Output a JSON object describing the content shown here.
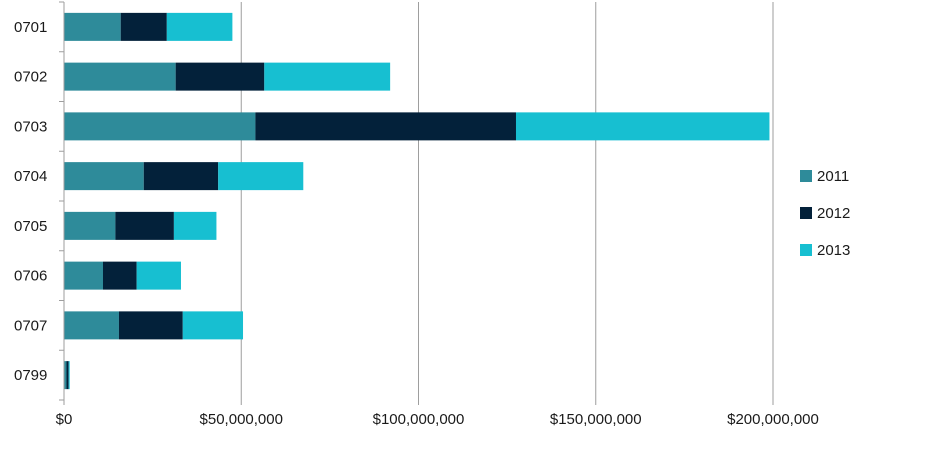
{
  "chart_data": {
    "type": "bar",
    "orientation": "horizontal",
    "stacked": true,
    "categories": [
      "0701",
      "0702",
      "0703",
      "0704",
      "0705",
      "0706",
      "0707",
      "0799"
    ],
    "series": [
      {
        "name": "2011",
        "color": "#2e8b9a",
        "values": [
          16000000,
          31500000,
          54000000,
          22500000,
          14500000,
          11000000,
          15500000,
          700000
        ]
      },
      {
        "name": "2012",
        "color": "#03213a",
        "values": [
          13000000,
          25000000,
          73500000,
          21000000,
          16500000,
          9500000,
          18000000,
          600000
        ]
      },
      {
        "name": "2013",
        "color": "#17bfd1",
        "values": [
          18500000,
          35500000,
          71500000,
          24000000,
          12000000,
          12500000,
          17000000,
          300000
        ]
      }
    ],
    "x_ticks": [
      "$0",
      "$50,000,000",
      "$100,000,000",
      "$150,000,000",
      "$200,000,000"
    ],
    "xlim": [
      0,
      200000000
    ],
    "grid": "vertical",
    "legend": "right",
    "title": "",
    "xlabel": "",
    "ylabel": ""
  }
}
